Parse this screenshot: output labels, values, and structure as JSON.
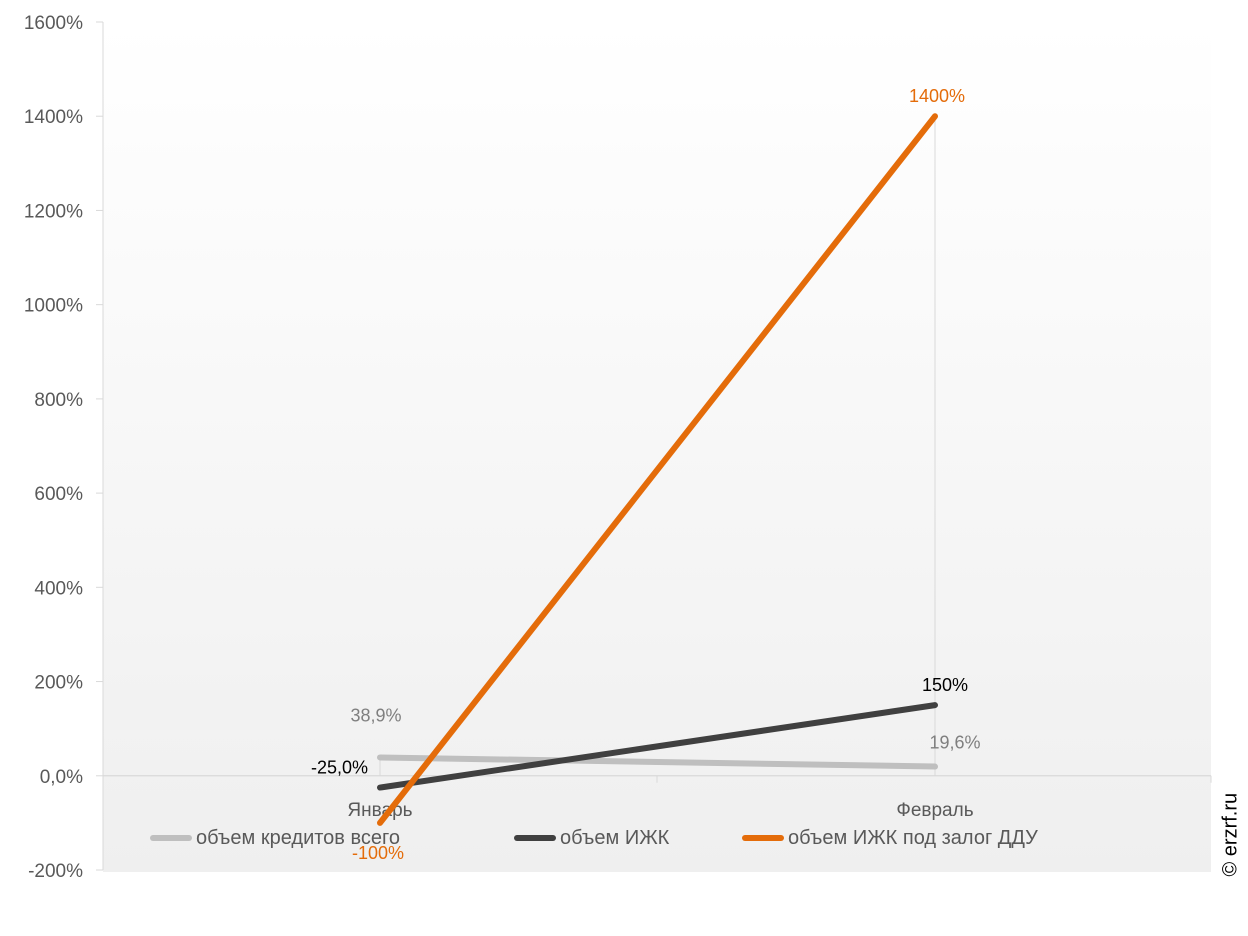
{
  "chart_data": {
    "type": "line",
    "categories": [
      "Январь",
      "Февраль"
    ],
    "series": [
      {
        "name": "объем кредитов всего",
        "values": [
          38.9,
          19.6
        ],
        "labels": [
          "38,9%",
          "19,6%"
        ],
        "color": "#bfbfbf",
        "label_color": "#7f7f7f"
      },
      {
        "name": "объем ИЖК",
        "values": [
          -25.0,
          150
        ],
        "labels": [
          "-25,0%",
          "150%"
        ],
        "color": "#404040",
        "label_color": "#000000"
      },
      {
        "name": "объем ИЖК под залог ДДУ",
        "values": [
          -100,
          1400
        ],
        "labels": [
          "-100%",
          "1400%"
        ],
        "color": "#e46c0a",
        "label_color": "#e46c0a"
      }
    ],
    "y_ticks": [
      -200,
      0,
      200,
      400,
      600,
      800,
      1000,
      1200,
      1400,
      1600
    ],
    "y_tick_labels": [
      "-200%",
      "0,0%",
      "200%",
      "400%",
      "600%",
      "800%",
      "1000%",
      "1200%",
      "1400%",
      "1600%"
    ],
    "ylim": [
      -200,
      1600
    ],
    "legend_position": "bottom",
    "grid": false
  },
  "watermark": "© erzrf.ru"
}
